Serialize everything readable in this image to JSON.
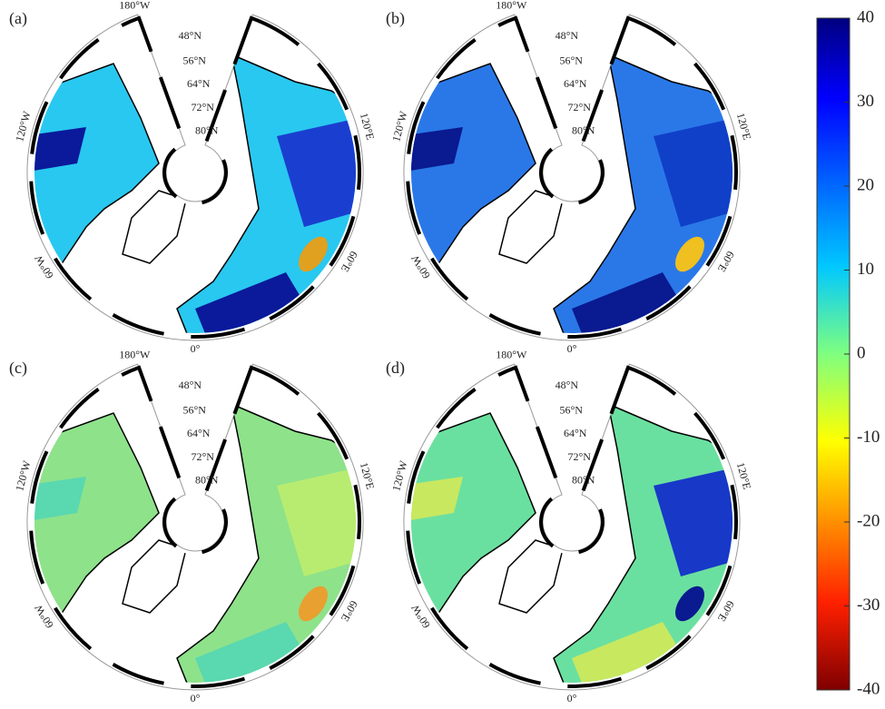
{
  "figure": {
    "panels": [
      {
        "label": "(a)",
        "lon_labels": [
          "180°W",
          "120°W",
          "60°W",
          "0°",
          "60°E",
          "120°E"
        ],
        "lat_labels": [
          "48°N",
          "56°N",
          "64°N",
          "72°N",
          "80°N"
        ]
      },
      {
        "label": "(b)",
        "lon_labels": [
          "180°W",
          "120°W",
          "60°W",
          "0°",
          "60°E",
          "120°E"
        ],
        "lat_labels": [
          "48°N",
          "56°N",
          "64°N",
          "72°N",
          "80°N"
        ]
      },
      {
        "label": "(c)",
        "lon_labels": [
          "180°W",
          "120°W",
          "60°W",
          "0°",
          "60°E",
          "120°E"
        ],
        "lat_labels": [
          "48°N",
          "56°N",
          "64°N",
          "72°N",
          "80°N"
        ]
      },
      {
        "label": "(d)",
        "lon_labels": [
          "180°W",
          "120°W",
          "60°W",
          "0°",
          "60°E",
          "120°E"
        ],
        "lat_labels": [
          "48°N",
          "56°N",
          "64°N",
          "72°N",
          "80°N"
        ]
      }
    ],
    "colorbar": {
      "ylim": [
        -40,
        40
      ],
      "yticks": [
        40,
        30,
        20,
        10,
        0,
        -10,
        -20,
        -30,
        -40
      ]
    }
  }
}
